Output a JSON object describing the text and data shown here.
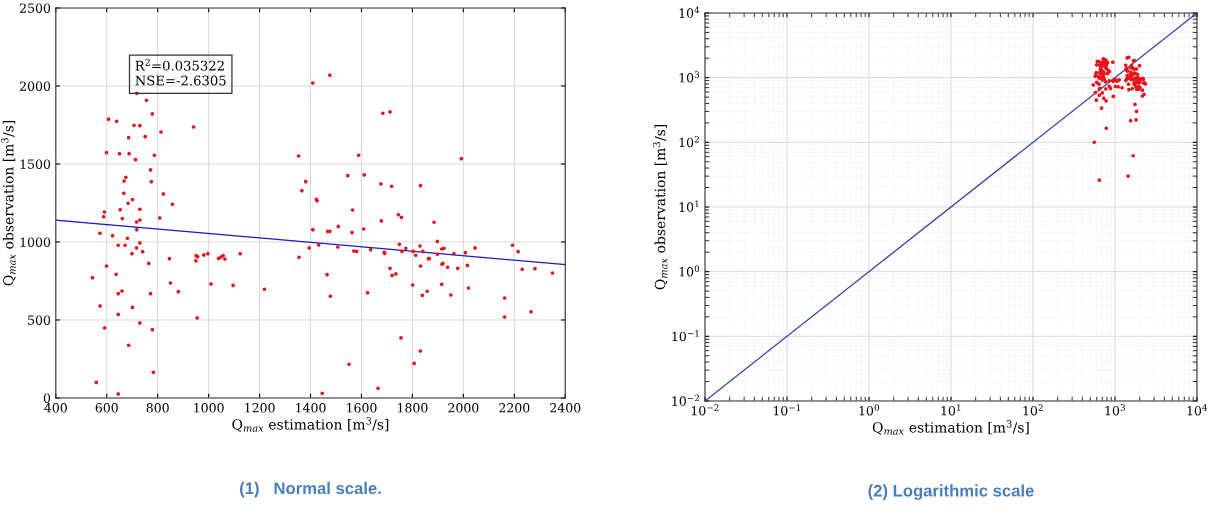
{
  "chart_data": [
    {
      "type": "scatter",
      "title": "(1)   Normal scale.",
      "xlabel": "Q$_{max}$ estimation [m$^{3}$/s]",
      "ylabel": "Q$_{max}$ observation [m$^{3}$/s]",
      "annotations": [
        "R$^{2}$=0.035322",
        "NSE=-2.6305"
      ],
      "xlim": [
        400,
        2400
      ],
      "ylim": [
        0,
        2500
      ],
      "xticks": [
        400,
        600,
        800,
        1000,
        1200,
        1400,
        1600,
        1800,
        2000,
        2200,
        2400
      ],
      "yticks": [
        0,
        500,
        1000,
        1500,
        2000,
        2500
      ],
      "grid": true,
      "series": [
        {
          "marker": "circle",
          "color": "#e8141c",
          "x": [
            645,
            559,
            783,
            686,
            592,
            779,
            730,
            645,
            574,
            701,
            645,
            660,
            772,
            544,
            637,
            599,
            765,
            699,
            741,
            717,
            730,
            645,
            672,
            681,
            623,
            573,
            718,
            717,
            730,
            661,
            588,
            591,
            653,
            730,
            808,
            684,
            701,
            667,
            822,
            858,
            668,
            675,
            775,
            772,
            713,
            787,
            599,
            650,
            688,
            686,
            751,
            813,
            707,
            730,
            607,
            639,
            779,
            756,
            718,
            941,
            846,
            951,
            950,
            957,
            981,
            997,
            1039,
            1049,
            1057,
            1064,
            1124,
            850,
            1009,
            1096,
            881,
            1219,
            955,
            1476,
            1409,
            1684,
            1712,
            1353,
            1589,
            1992,
            1546,
            1611,
            1381,
            1366,
            1676,
            1718,
            1832,
            1423,
            1426,
            1565,
            1745,
            1757,
            1885,
            1409,
            1476,
            1467,
            1509,
            1563,
            1609,
            1678,
            1898,
            1749,
            1395,
            1432,
            1507,
            1570,
            1581,
            1636,
            1691,
            1689,
            1759,
            1774,
            1803,
            1813,
            1830,
            1841,
            1866,
            1898,
            1915,
            1924,
            1963,
            2008,
            2046,
            2193,
            2215,
            1355,
            1712,
            1720,
            1735,
            1832,
            1863,
            1916,
            1920,
            1938,
            1978,
            2016,
            2231,
            2281,
            2350,
            1465,
            1801,
            1915,
            2020,
            1624,
            1839,
            1858,
            1951,
            1478,
            2162,
            2162,
            2266,
            1755,
            1831,
            1551,
            1807,
            1665,
            1446
          ],
          "values": [
            26,
            100,
            165,
            338,
            449,
            438,
            481,
            536,
            590,
            581,
            669,
            686,
            669,
            771,
            793,
            846,
            863,
            925,
            938,
            962,
            994,
            979,
            979,
            1024,
            1041,
            1056,
            1079,
            1128,
            1141,
            1150,
            1162,
            1192,
            1207,
            1210,
            1154,
            1248,
            1272,
            1312,
            1308,
            1242,
            1391,
            1415,
            1387,
            1462,
            1528,
            1556,
            1573,
            1566,
            1566,
            1669,
            1675,
            1705,
            1748,
            1746,
            1787,
            1774,
            1821,
            1908,
            1953,
            1737,
            893,
            912,
            880,
            906,
            917,
            925,
            895,
            904,
            912,
            891,
            925,
            737,
            731,
            722,
            682,
            697,
            513,
            2069,
            2019,
            1825,
            1834,
            1551,
            1556,
            1534,
            1425,
            1430,
            1387,
            1329,
            1372,
            1357,
            1361,
            1273,
            1264,
            1205,
            1175,
            1158,
            1126,
            1079,
            1068,
            1068,
            1100,
            1060,
            1083,
            1135,
            1004,
            985,
            962,
            981,
            968,
            942,
            940,
            951,
            927,
            934,
            940,
            960,
            940,
            915,
            974,
            940,
            893,
            921,
            955,
            960,
            925,
            932,
            962,
            979,
            938,
            902,
            831,
            786,
            795,
            846,
            893,
            857,
            863,
            838,
            831,
            850,
            825,
            829,
            801,
            791,
            724,
            729,
            705,
            675,
            658,
            684,
            660,
            652,
            641,
            519,
            553,
            385,
            301,
            216,
            222,
            62,
            30
          ]
        },
        {
          "type": "line",
          "marker": "none",
          "color": "#1a1ac8",
          "x": [
            400,
            2400
          ],
          "values": [
            1140,
            855
          ]
        }
      ]
    },
    {
      "type": "scatter",
      "title": "(2) Logarithmic scale",
      "xlabel": "Q$_{max}$ estimation [m$^{3}$/s]",
      "ylabel": "Q$_{max}$ observation [m$^{3}$/s]",
      "log": "xy",
      "xlim": [
        0.01,
        10000
      ],
      "ylim": [
        0.01,
        10000
      ],
      "xticks": [
        {
          "value": 0.01,
          "label": "10$^{−2}$"
        },
        {
          "value": 0.1,
          "label": "10$^{−1}$"
        },
        {
          "value": 1,
          "label": "10$^{0}$"
        },
        {
          "value": 10,
          "label": "10$^{1}$"
        },
        {
          "value": 100,
          "label": "10$^{2}$"
        },
        {
          "value": 1000,
          "label": "10$^{3}$"
        },
        {
          "value": 10000,
          "label": "10$^{4}$"
        }
      ],
      "yticks": [
        {
          "value": 0.01,
          "label": "10$^{−2}$"
        },
        {
          "value": 0.1,
          "label": "10$^{−1}$"
        },
        {
          "value": 1,
          "label": "10$^{0}$"
        },
        {
          "value": 10,
          "label": "10$^{1}$"
        },
        {
          "value": 100,
          "label": "10$^{2}$"
        },
        {
          "value": 1000,
          "label": "10$^{3}$"
        },
        {
          "value": 10000,
          "label": "10$^{4}$"
        }
      ],
      "grid": true,
      "series": [
        {
          "marker": "circle",
          "color": "#e8141c",
          "x": [
            645,
            559,
            783,
            686,
            592,
            779,
            730,
            645,
            574,
            701,
            645,
            660,
            772,
            544,
            637,
            599,
            765,
            699,
            741,
            730,
            645,
            681,
            623,
            573,
            718,
            717,
            730,
            661,
            588,
            591,
            653,
            730,
            808,
            701,
            667,
            822,
            858,
            668,
            675,
            775,
            772,
            713,
            787,
            599,
            650,
            688,
            686,
            751,
            813,
            707,
            730,
            607,
            639,
            779,
            756,
            718,
            941,
            846,
            951,
            950,
            957,
            981,
            997,
            1039,
            1049,
            1057,
            1064,
            1124,
            850,
            1009,
            1096,
            881,
            1219,
            955,
            1476,
            1409,
            1684,
            1712,
            1353,
            1589,
            1992,
            1546,
            1611,
            1381,
            1366,
            1676,
            1718,
            1832,
            1423,
            1426,
            1565,
            1745,
            1757,
            1885,
            1409,
            1509,
            1563,
            1609,
            1678,
            1898,
            1749,
            1395,
            1432,
            1507,
            1570,
            1581,
            1636,
            1691,
            1689,
            1830,
            2008,
            2046,
            2193,
            2215,
            1355,
            1712,
            1720,
            1735,
            1832,
            1863,
            1938,
            1978,
            2016,
            2231,
            2281,
            2350,
            1465,
            1801,
            1915,
            2020,
            1624,
            1839,
            1951,
            1478,
            2162,
            2162,
            2266,
            1755,
            1831,
            1551,
            1807,
            1665,
            1446
          ],
          "values": [
            26,
            100,
            165,
            338,
            449,
            438,
            481,
            536,
            590,
            581,
            669,
            686,
            669,
            771,
            793,
            846,
            863,
            925,
            938,
            994,
            979,
            1024,
            1041,
            1056,
            1079,
            1128,
            1141,
            1150,
            1162,
            1192,
            1207,
            1210,
            1154,
            1272,
            1312,
            1308,
            1242,
            1391,
            1415,
            1387,
            1462,
            1528,
            1556,
            1573,
            1566,
            1566,
            1669,
            1675,
            1705,
            1748,
            1746,
            1787,
            1774,
            1821,
            1908,
            1953,
            1737,
            893,
            912,
            880,
            906,
            917,
            925,
            895,
            904,
            912,
            891,
            925,
            737,
            731,
            722,
            682,
            697,
            513,
            2069,
            2019,
            1825,
            1834,
            1551,
            1556,
            1534,
            1425,
            1430,
            1387,
            1329,
            1372,
            1357,
            1361,
            1273,
            1264,
            1205,
            1175,
            1158,
            1126,
            1079,
            1100,
            1060,
            1083,
            1135,
            1004,
            985,
            962,
            981,
            968,
            942,
            940,
            951,
            927,
            934,
            974,
            932,
            962,
            979,
            938,
            902,
            831,
            786,
            795,
            846,
            893,
            838,
            831,
            850,
            825,
            829,
            801,
            791,
            724,
            729,
            705,
            675,
            658,
            660,
            652,
            641,
            519,
            553,
            385,
            301,
            216,
            222,
            62,
            30
          ]
        },
        {
          "type": "line",
          "marker": "none",
          "color": "#2a3fa8",
          "x": [
            0.01,
            10000
          ],
          "values": [
            0.01,
            10000
          ]
        }
      ]
    }
  ]
}
